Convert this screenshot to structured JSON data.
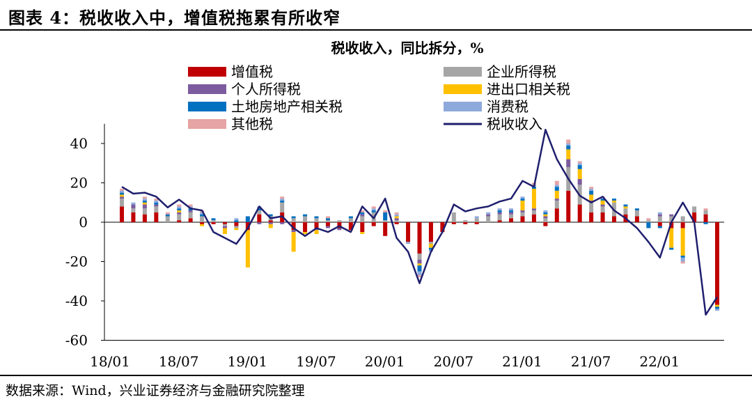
{
  "figure": {
    "title": "图表 4：税收收入中，增值税拖累有所收窄",
    "source": "数据来源：Wind，兴业证券经济与金融研究院整理"
  },
  "chart_data": {
    "type": "bar",
    "stacked": true,
    "title": "税收收入，同比拆分，%",
    "xlabel": "",
    "ylabel": "",
    "ylim": [
      -60,
      50
    ],
    "yticks": [
      40,
      20,
      0,
      -20,
      -40,
      -60
    ],
    "legend_position": "top",
    "x_ticks": [
      "18/01",
      "18/07",
      "19/01",
      "19/07",
      "20/01",
      "20/07",
      "21/01",
      "21/07",
      "22/01"
    ],
    "x_tick_indices": [
      0,
      6,
      12,
      18,
      24,
      30,
      36,
      42,
      48
    ],
    "categories": [
      "18/01",
      "18/02",
      "18/03",
      "18/04",
      "18/05",
      "18/06",
      "18/07",
      "18/08",
      "18/09",
      "18/10",
      "18/11",
      "18/12",
      "19/01",
      "19/02",
      "19/03",
      "19/04",
      "19/05",
      "19/06",
      "19/07",
      "19/08",
      "19/09",
      "19/10",
      "19/11",
      "19/12",
      "20/01",
      "20/02",
      "20/03",
      "20/04",
      "20/05",
      "20/06",
      "20/07",
      "20/08",
      "20/09",
      "20/10",
      "20/11",
      "20/12",
      "21/01",
      "21/02",
      "21/03",
      "21/04",
      "21/05",
      "21/06",
      "21/07",
      "21/08",
      "21/09",
      "21/10",
      "21/11",
      "21/12",
      "22/01",
      "22/02",
      "22/03",
      "22/04",
      "22/05"
    ],
    "series": [
      {
        "name": "增值税",
        "color": "#C00000",
        "values": [
          8,
          5,
          4,
          5,
          0,
          1,
          2,
          -1,
          -1,
          -1,
          -2,
          -4,
          4,
          1,
          5,
          -4,
          -5,
          -3,
          -2,
          -3,
          -4,
          -5,
          -2,
          -7,
          -1,
          -10,
          -16,
          -10,
          -5,
          -1,
          -1,
          -1,
          0,
          1,
          2,
          3,
          4,
          -2,
          7,
          16,
          9,
          5,
          5,
          3,
          4,
          3,
          0,
          -2,
          -3,
          -3,
          5,
          4,
          -42
        ]
      },
      {
        "name": "企业所得税",
        "color": "#A6A6A6",
        "values": [
          4,
          2,
          3,
          3,
          3,
          3,
          3,
          3,
          1,
          -1,
          -1,
          0,
          2,
          2,
          5,
          2,
          3,
          2,
          1,
          1,
          2,
          3,
          5,
          1,
          1,
          0,
          -3,
          -1,
          0,
          5,
          1,
          2,
          3,
          3,
          2,
          2,
          2,
          2,
          4,
          12,
          10,
          5,
          3,
          7,
          3,
          3,
          1,
          3,
          3,
          3,
          3,
          2,
          0
        ]
      },
      {
        "name": "个人所得税",
        "color": "#7C5C9E",
        "values": [
          1,
          2,
          2,
          1,
          0,
          1,
          1,
          0,
          0,
          -1,
          0,
          0,
          -1,
          -1,
          -1,
          -1,
          0,
          -1,
          -1,
          -1,
          0,
          1,
          0,
          0,
          1,
          0,
          -2,
          0,
          0,
          0,
          0,
          0,
          1,
          1,
          1,
          1,
          1,
          1,
          1,
          4,
          3,
          1,
          1,
          0,
          0,
          0,
          0,
          1,
          1,
          0,
          0,
          0,
          0
        ]
      },
      {
        "name": "进出口相关税",
        "color": "#FFC000",
        "values": [
          1,
          0,
          1,
          0,
          0,
          1,
          0,
          -1,
          0,
          -3,
          -1,
          -19,
          0,
          -2,
          0,
          -10,
          -1,
          -2,
          0,
          0,
          0,
          -1,
          0,
          0,
          1,
          0,
          -1,
          -2,
          0,
          0,
          0,
          0,
          0,
          0,
          0,
          5,
          10,
          1,
          4,
          5,
          5,
          3,
          2,
          1,
          1,
          0,
          0,
          0,
          -10,
          -14,
          0,
          0,
          -1
        ]
      },
      {
        "name": "土地房地产相关税",
        "color": "#0070C0",
        "values": [
          1,
          0,
          1,
          1,
          1,
          1,
          1,
          1,
          1,
          0,
          1,
          3,
          1,
          1,
          1,
          1,
          1,
          1,
          1,
          0,
          1,
          1,
          1,
          4,
          0,
          0,
          -3,
          -1,
          0,
          0,
          0,
          0,
          0,
          1,
          1,
          1,
          1,
          1,
          2,
          2,
          2,
          2,
          1,
          1,
          1,
          1,
          -3,
          -1,
          -1,
          -1,
          0,
          -1,
          -1
        ]
      },
      {
        "name": "消费税",
        "color": "#8EA9DB",
        "values": [
          1,
          1,
          1,
          1,
          0,
          1,
          1,
          1,
          0,
          0,
          1,
          0,
          1,
          0,
          1,
          0,
          0,
          0,
          0,
          0,
          0,
          0,
          1,
          0,
          1,
          -1,
          -2,
          -1,
          0,
          0,
          0,
          1,
          1,
          1,
          1,
          1,
          1,
          1,
          1,
          1,
          1,
          1,
          0,
          0,
          0,
          0,
          0,
          1,
          0,
          -2,
          0,
          0,
          -1
        ]
      },
      {
        "name": "其他税",
        "color": "#E6A4A4",
        "values": [
          1,
          0,
          1,
          1,
          1,
          1,
          1,
          1,
          0,
          0,
          0,
          0,
          0,
          0,
          1,
          0,
          0,
          0,
          1,
          0,
          0,
          1,
          1,
          1,
          1,
          0,
          -1,
          0,
          0,
          0,
          0,
          0,
          0,
          0,
          0,
          0,
          1,
          0,
          2,
          2,
          1,
          1,
          1,
          0,
          0,
          0,
          1,
          0,
          0,
          -1,
          0,
          1,
          0
        ]
      }
    ],
    "line": {
      "name": "税收收入",
      "color": "#1F1F6E",
      "values": [
        18,
        14.5,
        15,
        13,
        7.5,
        11.5,
        7,
        6,
        -5,
        -8,
        -11,
        -3,
        8,
        2,
        3,
        -3,
        -7,
        -3,
        -5,
        -2,
        -5,
        8,
        2,
        12,
        -8,
        -15,
        -31,
        -15,
        -5,
        9,
        5.5,
        7,
        8,
        10.5,
        12,
        21,
        18,
        47,
        32,
        22,
        13.5,
        10,
        13,
        6,
        2,
        -3,
        -10,
        -18,
        0,
        10,
        0,
        -47,
        -38
      ]
    }
  }
}
